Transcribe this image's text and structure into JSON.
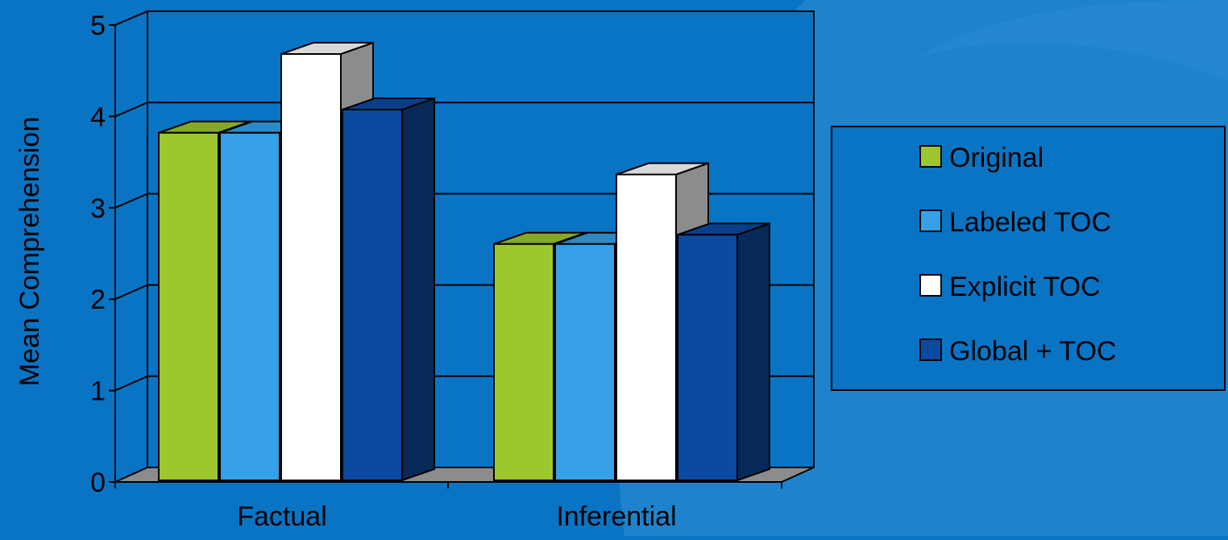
{
  "chart_data": {
    "type": "bar",
    "title": "",
    "ylabel": "Mean Comprehension",
    "xlabel": "",
    "ylim": [
      0,
      5
    ],
    "yticks": [
      "0",
      "1",
      "2",
      "3",
      "4",
      "5"
    ],
    "categories": [
      "Factual",
      "Inferential"
    ],
    "series": [
      {
        "name": "Original",
        "values": [
          3.75,
          2.55
        ],
        "color": "#9dc62f"
      },
      {
        "name": "Labeled TOC",
        "values": [
          3.75,
          2.55
        ],
        "color": "#36a0e6"
      },
      {
        "name": "Explicit TOC",
        "values": [
          4.6,
          3.3
        ],
        "color": "#ffffff"
      },
      {
        "name": "Global + TOC",
        "values": [
          4.0,
          2.65
        ],
        "color": "#0a4aa0"
      }
    ],
    "grid": true,
    "legend_position": "right",
    "style": "3d-bars"
  },
  "colors": {
    "background": "#0a74c4",
    "background_arc": "#2f8fd4",
    "axis": "#000000"
  }
}
